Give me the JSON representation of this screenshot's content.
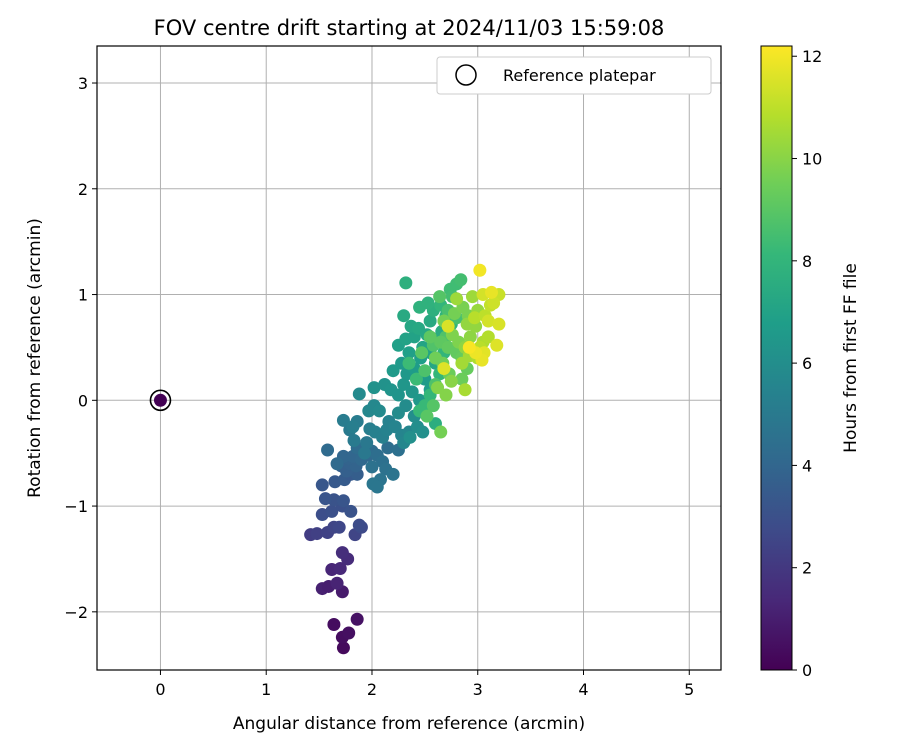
{
  "chart_data": {
    "type": "scatter",
    "title": "FOV centre drift starting at 2024/11/03 15:59:08",
    "xlabel": "Angular distance from reference (arcmin)",
    "ylabel": "Rotation from reference (arcmin)",
    "xlim": [
      -0.6,
      5.3
    ],
    "ylim": [
      -2.55,
      3.35
    ],
    "xticks": [
      0,
      1,
      2,
      3,
      4,
      5
    ],
    "xtick_labels": [
      "0",
      "1",
      "2",
      "3",
      "4",
      "5"
    ],
    "yticks": [
      -2,
      -1,
      0,
      1,
      2,
      3
    ],
    "ytick_labels": [
      "−2",
      "−1",
      "0",
      "1",
      "2",
      "3"
    ],
    "grid": true,
    "legend": {
      "position": "top-right",
      "entries": [
        "Reference platepar"
      ]
    },
    "colorbar": {
      "label": "Hours from first FF file",
      "range": [
        0,
        12.2
      ],
      "ticks": [
        0,
        2,
        4,
        6,
        8,
        10,
        12
      ],
      "tick_labels": [
        "0",
        "2",
        "4",
        "6",
        "8",
        "10",
        "12"
      ],
      "colormap": "viridis"
    },
    "reference_point": {
      "x": 0,
      "y": 0,
      "hours": 0
    },
    "points_columns": [
      "x",
      "y",
      "hours"
    ],
    "points": [
      [
        0.0,
        0.0,
        0.05
      ],
      [
        1.73,
        -2.34,
        0.3
      ],
      [
        1.72,
        -2.24,
        0.4
      ],
      [
        1.78,
        -2.2,
        0.5
      ],
      [
        1.64,
        -2.12,
        0.4
      ],
      [
        1.86,
        -2.07,
        0.6
      ],
      [
        1.72,
        -1.81,
        0.9
      ],
      [
        1.53,
        -1.78,
        1.1
      ],
      [
        1.59,
        -1.76,
        1.0
      ],
      [
        1.67,
        -1.73,
        1.2
      ],
      [
        1.62,
        -1.6,
        1.3
      ],
      [
        1.7,
        -1.59,
        1.4
      ],
      [
        1.77,
        -1.5,
        1.5
      ],
      [
        1.72,
        -1.44,
        1.6
      ],
      [
        1.42,
        -1.27,
        2.2
      ],
      [
        1.48,
        -1.26,
        2.3
      ],
      [
        1.58,
        -1.25,
        2.4
      ],
      [
        1.64,
        -1.2,
        2.5
      ],
      [
        1.69,
        -1.2,
        2.6
      ],
      [
        1.84,
        -1.27,
        2.5
      ],
      [
        1.9,
        -1.2,
        2.7
      ],
      [
        1.88,
        -1.18,
        2.8
      ],
      [
        1.53,
        -1.08,
        2.9
      ],
      [
        1.62,
        -1.05,
        3.0
      ],
      [
        1.72,
        -1.0,
        3.0
      ],
      [
        1.8,
        -1.05,
        3.1
      ],
      [
        1.64,
        -0.94,
        3.1
      ],
      [
        1.56,
        -0.93,
        3.2
      ],
      [
        1.73,
        -0.95,
        3.2
      ],
      [
        1.53,
        -0.8,
        3.3
      ],
      [
        1.65,
        -0.77,
        3.4
      ],
      [
        1.74,
        -0.75,
        3.5
      ],
      [
        1.8,
        -0.7,
        3.4
      ],
      [
        1.86,
        -0.7,
        3.6
      ],
      [
        1.76,
        -0.67,
        3.7
      ],
      [
        1.71,
        -0.62,
        3.7
      ],
      [
        1.79,
        -0.6,
        3.8
      ],
      [
        1.85,
        -0.62,
        3.9
      ],
      [
        1.78,
        -0.55,
        3.9
      ],
      [
        1.73,
        -0.53,
        4.0
      ],
      [
        1.82,
        -0.53,
        4.0
      ],
      [
        1.9,
        -0.56,
        4.1
      ],
      [
        1.96,
        -0.52,
        4.1
      ],
      [
        1.58,
        -0.47,
        4.2
      ],
      [
        1.67,
        -0.6,
        4.2
      ],
      [
        1.86,
        -0.45,
        4.3
      ],
      [
        2.0,
        -0.48,
        4.3
      ],
      [
        2.05,
        -0.52,
        4.4
      ],
      [
        2.15,
        -0.45,
        4.4
      ],
      [
        2.25,
        -0.47,
        4.5
      ],
      [
        2.1,
        -0.58,
        4.5
      ],
      [
        2.0,
        -0.63,
        4.6
      ],
      [
        2.13,
        -0.65,
        4.6
      ],
      [
        2.2,
        -0.7,
        4.7
      ],
      [
        2.08,
        -0.75,
        4.7
      ],
      [
        2.01,
        -0.79,
        4.8
      ],
      [
        2.05,
        -0.82,
        4.8
      ],
      [
        1.93,
        -0.5,
        4.9
      ],
      [
        1.95,
        -0.4,
        4.9
      ],
      [
        1.83,
        -0.38,
        5.0
      ],
      [
        1.79,
        -0.28,
        5.0
      ],
      [
        1.73,
        -0.19,
        5.1
      ],
      [
        1.86,
        -0.2,
        5.1
      ],
      [
        1.82,
        -0.25,
        5.2
      ],
      [
        1.98,
        -0.27,
        5.2
      ],
      [
        2.03,
        -0.3,
        5.3
      ],
      [
        2.1,
        -0.35,
        5.3
      ],
      [
        2.14,
        -0.28,
        5.4
      ],
      [
        2.16,
        -0.2,
        5.4
      ],
      [
        2.22,
        -0.25,
        5.5
      ],
      [
        2.28,
        -0.33,
        5.5
      ],
      [
        2.3,
        -0.4,
        5.6
      ],
      [
        2.35,
        -0.3,
        5.6
      ],
      [
        1.97,
        -0.1,
        5.7
      ],
      [
        2.02,
        -0.05,
        5.7
      ],
      [
        2.07,
        -0.1,
        5.8
      ],
      [
        1.88,
        0.06,
        5.8
      ],
      [
        2.25,
        -0.12,
        5.9
      ],
      [
        2.32,
        -0.05,
        5.9
      ],
      [
        2.4,
        -0.15,
        6.0
      ],
      [
        2.43,
        -0.25,
        6.0
      ],
      [
        2.48,
        -0.3,
        6.1
      ],
      [
        2.36,
        -0.35,
        6.1
      ],
      [
        2.02,
        0.12,
        6.2
      ],
      [
        2.12,
        0.15,
        6.2
      ],
      [
        2.18,
        0.1,
        6.3
      ],
      [
        2.25,
        0.05,
        6.3
      ],
      [
        2.3,
        0.15,
        6.4
      ],
      [
        2.38,
        0.08,
        6.4
      ],
      [
        2.45,
        0.0,
        6.5
      ],
      [
        2.33,
        0.25,
        6.5
      ],
      [
        2.2,
        0.28,
        6.6
      ],
      [
        2.28,
        0.35,
        6.6
      ],
      [
        2.4,
        0.3,
        6.7
      ],
      [
        2.5,
        0.2,
        6.7
      ],
      [
        2.55,
        0.1,
        6.8
      ],
      [
        2.46,
        0.4,
        6.8
      ],
      [
        2.35,
        0.45,
        6.9
      ],
      [
        2.25,
        0.52,
        6.9
      ],
      [
        2.32,
        0.58,
        7.0
      ],
      [
        2.4,
        0.6,
        7.0
      ],
      [
        2.48,
        0.5,
        7.1
      ],
      [
        2.55,
        0.45,
        7.1
      ],
      [
        2.6,
        0.35,
        7.2
      ],
      [
        2.37,
        0.7,
        7.2
      ],
      [
        2.44,
        0.68,
        7.3
      ],
      [
        2.52,
        0.62,
        7.3
      ],
      [
        2.3,
        0.8,
        7.4
      ],
      [
        2.55,
        0.75,
        7.4
      ],
      [
        2.62,
        0.58,
        7.5
      ],
      [
        2.66,
        0.65,
        7.5
      ],
      [
        2.6,
        -0.22,
        7.6
      ],
      [
        2.32,
        1.11,
        7.7
      ],
      [
        2.58,
        0.85,
        7.7
      ],
      [
        2.45,
        0.88,
        7.8
      ],
      [
        2.53,
        0.92,
        7.8
      ],
      [
        2.7,
        0.8,
        7.9
      ],
      [
        2.75,
        0.72,
        7.9
      ],
      [
        2.65,
        0.9,
        8.0
      ],
      [
        2.68,
        0.45,
        8.0
      ],
      [
        2.64,
        0.25,
        8.1
      ],
      [
        2.55,
        0.05,
        8.1
      ],
      [
        2.5,
        -0.05,
        8.2
      ],
      [
        2.45,
        -0.1,
        8.2
      ],
      [
        2.42,
        0.2,
        8.3
      ],
      [
        2.35,
        0.35,
        8.3
      ],
      [
        2.74,
        1.05,
        8.4
      ],
      [
        2.8,
        1.1,
        8.4
      ],
      [
        2.84,
        1.14,
        8.5
      ],
      [
        2.76,
        0.98,
        8.5
      ],
      [
        2.72,
        0.85,
        8.6
      ],
      [
        2.8,
        0.78,
        8.6
      ],
      [
        2.6,
        0.15,
        8.7
      ],
      [
        2.5,
        0.28,
        8.7
      ],
      [
        2.58,
        0.52,
        8.8
      ],
      [
        2.7,
        0.6,
        8.8
      ],
      [
        2.64,
        0.98,
        8.9
      ],
      [
        2.58,
        -0.05,
        8.9
      ],
      [
        2.52,
        -0.15,
        9.0
      ],
      [
        2.47,
        0.45,
        9.0
      ],
      [
        2.55,
        0.6,
        9.1
      ],
      [
        2.65,
        0.55,
        9.1
      ],
      [
        2.72,
        0.5,
        9.2
      ],
      [
        2.8,
        0.45,
        9.2
      ],
      [
        2.85,
        0.4,
        9.3
      ],
      [
        2.9,
        0.3,
        9.3
      ],
      [
        2.85,
        0.2,
        9.4
      ],
      [
        2.73,
        0.25,
        9.4
      ],
      [
        2.67,
        0.35,
        9.5
      ],
      [
        2.6,
        0.4,
        9.5
      ],
      [
        2.68,
        0.75,
        9.6
      ],
      [
        2.78,
        0.82,
        9.6
      ],
      [
        2.86,
        0.88,
        9.7
      ],
      [
        2.91,
        0.8,
        9.7
      ],
      [
        2.76,
        0.62,
        9.8
      ],
      [
        2.82,
        0.55,
        9.8
      ],
      [
        2.65,
        -0.3,
        9.6
      ],
      [
        2.7,
        0.05,
        9.9
      ],
      [
        2.62,
        0.12,
        9.9
      ],
      [
        2.75,
        0.18,
        10.0
      ],
      [
        2.88,
        0.5,
        10.1
      ],
      [
        2.93,
        0.6,
        10.1
      ],
      [
        2.98,
        0.7,
        10.2
      ],
      [
        2.9,
        0.72,
        10.2
      ],
      [
        3.0,
        0.85,
        10.3
      ],
      [
        2.95,
        0.98,
        10.4
      ],
      [
        2.8,
        0.96,
        10.4
      ],
      [
        2.85,
        0.35,
        10.5
      ],
      [
        2.92,
        0.42,
        10.5
      ],
      [
        2.88,
        0.1,
        10.6
      ],
      [
        3.0,
        0.4,
        10.7
      ],
      [
        3.05,
        0.55,
        10.7
      ],
      [
        3.1,
        0.6,
        10.8
      ],
      [
        3.02,
        0.5,
        10.9
      ],
      [
        2.97,
        0.78,
        10.9
      ],
      [
        3.07,
        0.8,
        11.0
      ],
      [
        3.12,
        0.9,
        11.1
      ],
      [
        3.2,
        1.0,
        11.2
      ],
      [
        3.15,
        0.92,
        11.3
      ],
      [
        3.05,
        1.0,
        11.4
      ],
      [
        3.1,
        0.75,
        11.4
      ],
      [
        3.2,
        0.72,
        11.5
      ],
      [
        3.18,
        0.52,
        11.6
      ],
      [
        3.06,
        0.45,
        11.7
      ],
      [
        3.04,
        0.38,
        11.8
      ],
      [
        2.98,
        0.45,
        11.9
      ],
      [
        2.72,
        0.7,
        11.5
      ],
      [
        2.68,
        0.3,
        11.6
      ],
      [
        3.13,
        1.02,
        11.8
      ],
      [
        3.02,
        1.23,
        12.0
      ],
      [
        2.92,
        0.5,
        12.1
      ]
    ]
  }
}
